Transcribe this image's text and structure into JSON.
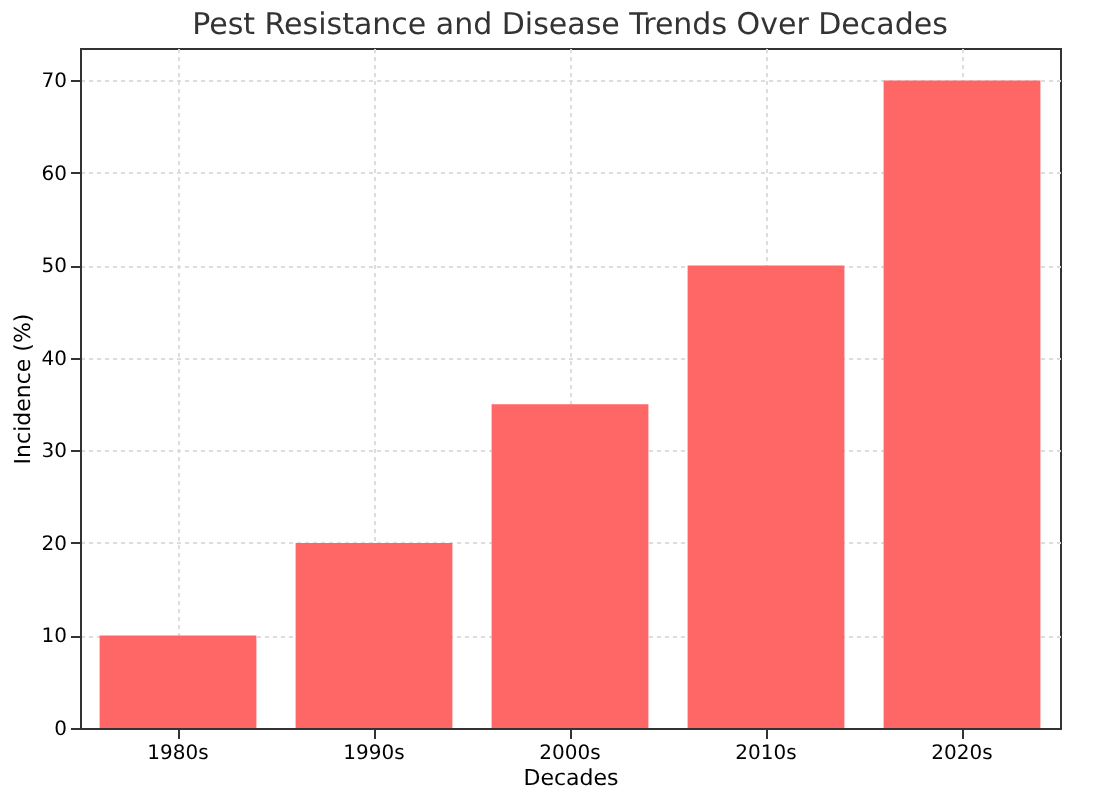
{
  "chart_data": {
    "type": "bar",
    "title": "Pest Resistance and Disease Trends Over Decades",
    "xlabel": "Decades",
    "ylabel": "Incidence (%)",
    "categories": [
      "1980s",
      "1990s",
      "2000s",
      "2010s",
      "2020s"
    ],
    "values": [
      10,
      20,
      35,
      50,
      70
    ],
    "color": "#ff6666",
    "ylim": [
      0,
      73.5
    ],
    "yticks": [
      0,
      10,
      20,
      30,
      40,
      50,
      60,
      70
    ],
    "grid": true
  }
}
